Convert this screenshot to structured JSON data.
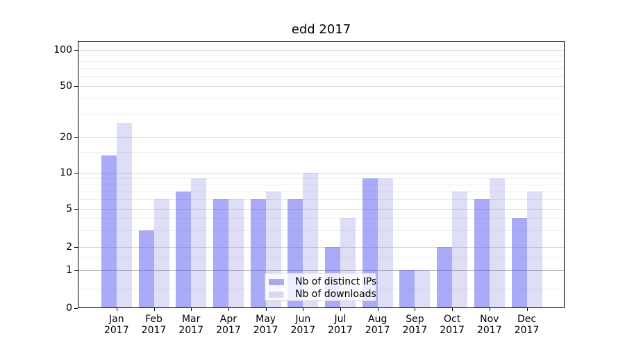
{
  "chart_data": {
    "type": "bar",
    "title": "edd 2017",
    "categories": [
      "Jan",
      "Feb",
      "Mar",
      "Apr",
      "May",
      "Jun",
      "Jul",
      "Aug",
      "Sep",
      "Oct",
      "Nov",
      "Dec"
    ],
    "category_year": "2017",
    "series": [
      {
        "name": "Nb of distinct IPs",
        "color": "rgba(85,85,239,0.5)",
        "solid_color": "#aaaaf7",
        "values": [
          14,
          3,
          7,
          6,
          6,
          6,
          2,
          9,
          1,
          2,
          6,
          4
        ]
      },
      {
        "name": "Nb of downloads",
        "color": "rgba(90,90,210,0.2)",
        "solid_color": "#dbdbf6",
        "values": [
          26,
          6,
          9,
          6,
          7,
          10,
          4,
          9,
          1,
          7,
          9,
          7
        ]
      }
    ],
    "xlabel": "",
    "ylabel": "",
    "y_axis": {
      "scale": "log-like above 1, linear between 0 and 1",
      "major_ticks": [
        100,
        50,
        20,
        10,
        5,
        2,
        1,
        0
      ],
      "minor_ticks": [
        90,
        80,
        70,
        60,
        40,
        30,
        15,
        9,
        8,
        7,
        6,
        4,
        3,
        1.5,
        0.5
      ],
      "range": [
        0,
        109
      ]
    },
    "legend": {
      "entries": [
        "Nb of distinct IPs",
        "Nb of downloads"
      ],
      "position": "inside plot, lower center-right"
    },
    "grid": true
  },
  "colors": {
    "background": "#ffffff",
    "axis": "#000000",
    "text": "#000000",
    "grid_major": "#d7d7d7",
    "grid_minor": "#ededed",
    "grid_unit_line": "#a8a8a8",
    "legend_border": "#cccccc",
    "bar_distinct_ips": "#aaaaf7",
    "bar_downloads": "#dbdbf6"
  }
}
